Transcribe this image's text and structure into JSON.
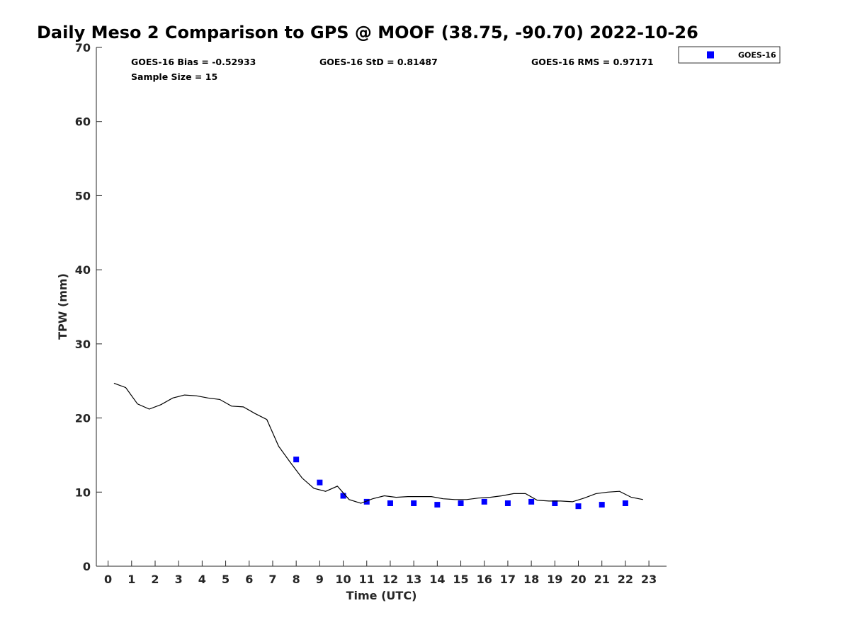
{
  "chart_data": {
    "type": "scatter",
    "title": "Daily Meso 2 Comparison to GPS @ MOOF (38.75, -90.70) 2022-10-26",
    "xlabel": "Time (UTC)",
    "ylabel": "TPW (mm)",
    "xlim": [
      -0.5,
      23.75
    ],
    "ylim": [
      0,
      70
    ],
    "x_ticks": [
      "0",
      "1",
      "2",
      "3",
      "4",
      "5",
      "6",
      "7",
      "8",
      "9",
      "10",
      "11",
      "12",
      "13",
      "14",
      "15",
      "16",
      "17",
      "18",
      "19",
      "20",
      "21",
      "22",
      "23"
    ],
    "y_ticks": [
      "0",
      "10",
      "20",
      "30",
      "40",
      "50",
      "60",
      "70"
    ],
    "grid": false,
    "legend_position": "outside-top-right",
    "series": [
      {
        "name": "GOES-16",
        "kind": "markers",
        "marker": "square",
        "color": "#0000ff",
        "x": [
          8,
          9,
          10,
          11,
          12,
          13,
          14,
          15,
          16,
          17,
          18,
          19,
          20,
          21,
          22
        ],
        "y": [
          14.4,
          11.3,
          9.5,
          8.7,
          8.5,
          8.5,
          8.3,
          8.5,
          8.7,
          8.5,
          8.7,
          8.5,
          8.1,
          8.3,
          8.5
        ]
      },
      {
        "kind": "line",
        "color": "#000000",
        "x": [
          0.25,
          0.75,
          1.25,
          1.75,
          2.25,
          2.75,
          3.25,
          3.75,
          4.25,
          4.75,
          5.25,
          5.75,
          6.25,
          6.75,
          7.25,
          7.75,
          8.25,
          8.75,
          9.25,
          9.75,
          10.25,
          10.75,
          11.25,
          11.75,
          12.25,
          12.75,
          13.25,
          13.75,
          14.25,
          14.75,
          15.25,
          15.75,
          16.25,
          16.75,
          17.25,
          17.75,
          18.25,
          18.75,
          19.25,
          19.75,
          20.25,
          20.75,
          21.25,
          21.75,
          22.25,
          22.75
        ],
        "y": [
          24.7,
          24.1,
          21.9,
          21.2,
          21.8,
          22.7,
          23.1,
          23.0,
          22.7,
          22.5,
          21.6,
          21.5,
          20.6,
          19.8,
          16.2,
          14.0,
          11.9,
          10.5,
          10.1,
          10.8,
          9.0,
          8.5,
          9.1,
          9.5,
          9.3,
          9.4,
          9.4,
          9.4,
          9.1,
          9.0,
          9.0,
          9.2,
          9.3,
          9.5,
          9.8,
          9.8,
          8.9,
          8.8,
          8.8,
          8.7,
          9.2,
          9.8,
          10.0,
          10.1,
          9.3,
          9.0
        ]
      }
    ],
    "annotations": {
      "bias": "GOES-16 Bias = -0.52933",
      "std": "GOES-16 StD = 0.81487",
      "rms": "GOES-16 RMS = 0.97171",
      "sample": "Sample Size = 15"
    }
  }
}
